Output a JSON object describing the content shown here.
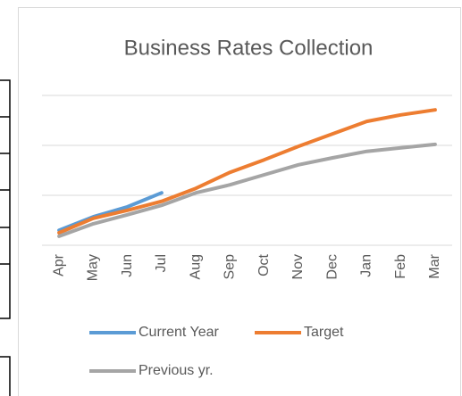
{
  "chart_data": {
    "type": "line",
    "title": "Business Rates Collection",
    "categories": [
      "Apr",
      "May",
      "Jun",
      "Jul",
      "Aug",
      "Sep",
      "Oct",
      "Nov",
      "Dec",
      "Jan",
      "Feb",
      "Mar"
    ],
    "series": [
      {
        "name": "Current Year",
        "color": "#5b9bd5",
        "values": [
          0.3,
          0.57,
          0.77,
          1.05,
          null,
          null,
          null,
          null,
          null,
          null,
          null,
          null
        ]
      },
      {
        "name": "Target",
        "color": "#ed7d31",
        "values": [
          0.25,
          0.54,
          0.7,
          0.88,
          1.14,
          1.46,
          1.71,
          1.98,
          2.23,
          2.48,
          2.61,
          2.71
        ]
      },
      {
        "name": "Previous yr.",
        "color": "#a5a5a5",
        "values": [
          0.18,
          0.43,
          0.61,
          0.8,
          1.05,
          1.21,
          1.41,
          1.61,
          1.75,
          1.88,
          1.95,
          2.02
        ]
      }
    ],
    "ylim": [
      0,
      3
    ],
    "yticks": [
      0,
      1,
      2,
      3
    ],
    "grid": true
  }
}
